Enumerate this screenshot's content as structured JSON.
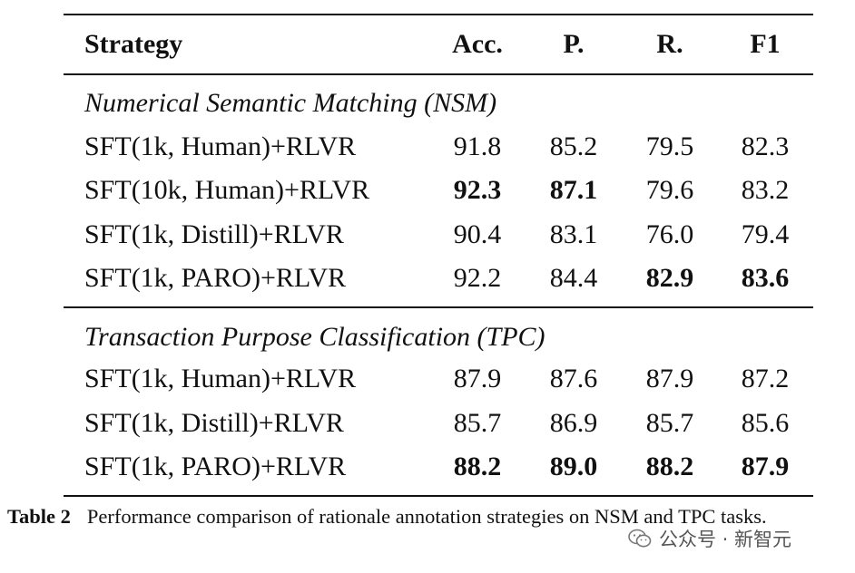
{
  "table": {
    "headers": {
      "strategy": "Strategy",
      "acc": "Acc.",
      "p": "P.",
      "r": "R.",
      "f1": "F1"
    },
    "sections": [
      {
        "title": "Numerical Semantic Matching (NSM)",
        "rows": [
          {
            "strategy": "SFT(1k, Human)+RLVR",
            "acc": "91.8",
            "p": "85.2",
            "r": "79.5",
            "f1": "82.3",
            "bold": []
          },
          {
            "strategy": "SFT(10k, Human)+RLVR",
            "acc": "92.3",
            "p": "87.1",
            "r": "79.6",
            "f1": "83.2",
            "bold": [
              "acc",
              "p"
            ]
          },
          {
            "strategy": "SFT(1k, Distill)+RLVR",
            "acc": "90.4",
            "p": "83.1",
            "r": "76.0",
            "f1": "79.4",
            "bold": []
          },
          {
            "strategy": "SFT(1k, PARO)+RLVR",
            "acc": "92.2",
            "p": "84.4",
            "r": "82.9",
            "f1": "83.6",
            "bold": [
              "r",
              "f1"
            ]
          }
        ]
      },
      {
        "title": "Transaction Purpose Classification (TPC)",
        "rows": [
          {
            "strategy": "SFT(1k, Human)+RLVR",
            "acc": "87.9",
            "p": "87.6",
            "r": "87.9",
            "f1": "87.2",
            "bold": []
          },
          {
            "strategy": "SFT(1k, Distill)+RLVR",
            "acc": "85.7",
            "p": "86.9",
            "r": "85.7",
            "f1": "85.6",
            "bold": []
          },
          {
            "strategy": "SFT(1k, PARO)+RLVR",
            "acc": "88.2",
            "p": "89.0",
            "r": "88.2",
            "f1": "87.9",
            "bold": [
              "acc",
              "p",
              "r",
              "f1"
            ]
          }
        ]
      }
    ]
  },
  "caption": {
    "label": "Table 2",
    "text": "Performance comparison of rationale annotation strategies on NSM and TPC tasks."
  },
  "watermark": {
    "text": "公众号 · 新智元",
    "icon": "wechat-icon"
  }
}
